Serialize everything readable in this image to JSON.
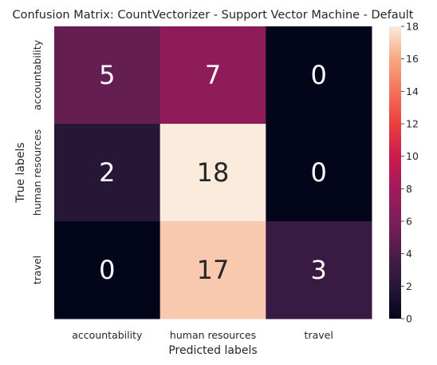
{
  "chart_data": {
    "type": "heatmap",
    "title": "Confusion Matrix: CountVectorizer - Support Vector Machine - Default",
    "xlabel": "Predicted labels",
    "ylabel": "True labels",
    "x_categories": [
      "accountability",
      "human resources",
      "travel"
    ],
    "y_categories": [
      "accountability",
      "human resources",
      "travel"
    ],
    "values": [
      [
        5,
        7,
        0
      ],
      [
        2,
        18,
        0
      ],
      [
        0,
        17,
        3
      ]
    ],
    "colorbar": {
      "range": [
        0,
        18
      ],
      "ticks": [
        "0",
        "2",
        "4",
        "6",
        "8",
        "10",
        "12",
        "14",
        "16",
        "18"
      ]
    },
    "colormap": "rocket",
    "annotation_colors": {
      "dark_cell": "#262626",
      "light_cell": "#ffffff"
    }
  }
}
